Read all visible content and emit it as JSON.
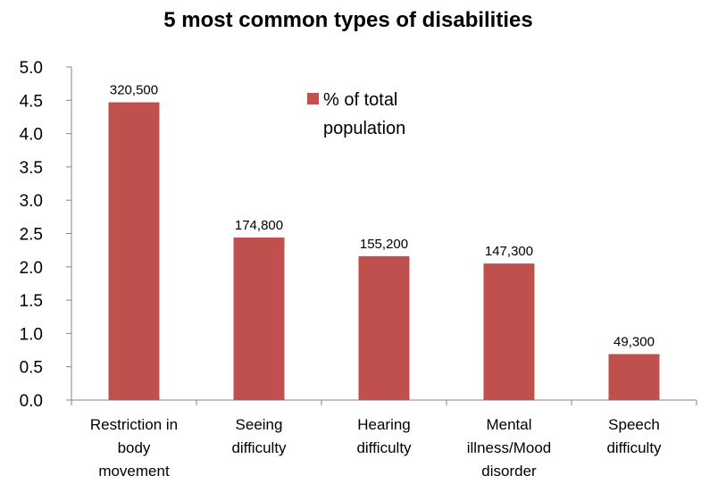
{
  "chart_data": {
    "type": "bar",
    "title": "5 most common types of disabilities",
    "xlabel": "",
    "ylabel": "",
    "ylim": [
      0,
      5.0
    ],
    "yticks": [
      "0.0",
      "0.5",
      "1.0",
      "1.5",
      "2.0",
      "2.5",
      "3.0",
      "3.5",
      "4.0",
      "4.5",
      "5.0"
    ],
    "categories": [
      [
        "Restriction in",
        "body",
        "movement"
      ],
      [
        "Seeing",
        "difficulty"
      ],
      [
        "Hearing",
        "difficulty"
      ],
      [
        "Mental",
        "illness/Mood",
        "disorder"
      ],
      [
        "Speech",
        "difficulty"
      ]
    ],
    "series": [
      {
        "name": "% of total population",
        "values": [
          4.47,
          2.44,
          2.16,
          2.05,
          0.69
        ],
        "data_labels": [
          "320,500",
          "174,800",
          "155,200",
          "147,300",
          "49,300"
        ],
        "color": "#c0504d"
      }
    ],
    "legend": {
      "position": "top-right",
      "lines": [
        "% of total",
        "population"
      ]
    },
    "grid": false
  }
}
